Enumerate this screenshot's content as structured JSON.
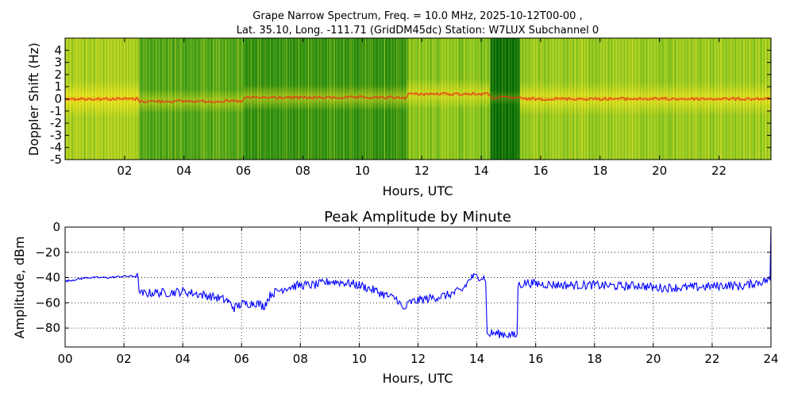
{
  "chart_data": [
    {
      "type": "heatmap",
      "title_line1": "Grape Narrow Spectrum, Freq. = 10.0 MHz, 2025-10-12T00-00 ,",
      "title_line2": "Lat.  35.10, Long. -111.71 (GridDM45dc) Station: W7LUX Subchannel 0",
      "xlabel": "Hours, UTC",
      "ylabel": "Doppler Shift (Hz)",
      "xlim": [
        0,
        23.75
      ],
      "ylim": [
        -5,
        5
      ],
      "xticks": [
        2,
        4,
        6,
        8,
        10,
        12,
        14,
        16,
        18,
        20,
        22
      ],
      "xtick_labels": [
        "02",
        "04",
        "06",
        "08",
        "10",
        "12",
        "14",
        "16",
        "18",
        "20",
        "22"
      ],
      "yticks": [
        4,
        3,
        2,
        1,
        0,
        -1,
        -2,
        -3,
        -4,
        -5
      ],
      "ytick_labels": [
        "4",
        "3",
        "2",
        "1",
        "0",
        "-1",
        "-2",
        "-3",
        "-4",
        "-5"
      ],
      "colormap": [
        "#006b00",
        "#1f8f0a",
        "#5fb818",
        "#c8e21c",
        "#f5e81a",
        "#f2a514",
        "#e8361a"
      ],
      "segments": [
        {
          "start": 0.0,
          "end": 2.5,
          "background": "#a8cf1c",
          "peak_hz": 0.0,
          "level": 0.95
        },
        {
          "start": 2.5,
          "end": 6.0,
          "background": "#4ea414",
          "peak_hz": -0.2,
          "level": 0.55
        },
        {
          "start": 6.0,
          "end": 11.5,
          "background": "#2f8e0c",
          "peak_hz": 0.1,
          "level": 0.6
        },
        {
          "start": 11.5,
          "end": 14.3,
          "background": "#86c41a",
          "peak_hz": 0.4,
          "level": 0.75
        },
        {
          "start": 14.3,
          "end": 15.3,
          "background": "#0a6d00",
          "peak_hz": 0.1,
          "level": 0.25
        },
        {
          "start": 15.3,
          "end": 23.75,
          "background": "#9acb1c",
          "peak_hz": 0.0,
          "level": 0.85
        }
      ]
    },
    {
      "type": "line",
      "title": "Peak Amplitude by Minute",
      "xlabel": "Hours, UTC",
      "ylabel": "Amplitude, dBm",
      "xlim": [
        0,
        24
      ],
      "ylim": [
        -95,
        0
      ],
      "xticks": [
        0,
        2,
        4,
        6,
        8,
        10,
        12,
        14,
        16,
        18,
        20,
        22,
        24
      ],
      "xtick_labels": [
        "00",
        "02",
        "04",
        "06",
        "08",
        "10",
        "12",
        "14",
        "16",
        "18",
        "20",
        "22",
        "24"
      ],
      "yticks": [
        0,
        -20,
        -40,
        -60,
        -80
      ],
      "ytick_labels": [
        "0",
        "−20",
        "−40",
        "−60",
        "−80"
      ],
      "grid": true,
      "line_color": "#0000ff",
      "series": [
        {
          "x": [
            0.0,
            0.25,
            0.5,
            0.75,
            1.0,
            1.5,
            2.0,
            2.45,
            2.55,
            3.0,
            3.5,
            4.0,
            4.5,
            5.0,
            5.5,
            5.75,
            6.0,
            6.5,
            6.75,
            7.0,
            7.5,
            8.0,
            8.5,
            9.0,
            9.5,
            10.0,
            10.5,
            11.0,
            11.3,
            11.5,
            11.7,
            12.0,
            12.5,
            13.0,
            13.5,
            13.8,
            14.1,
            14.3,
            14.35,
            14.5,
            15.0,
            15.3,
            15.4,
            15.7,
            16.0,
            17.0,
            18.0,
            19.0,
            19.5,
            20.0,
            20.5,
            21.0,
            22.0,
            22.5,
            23.0,
            23.5,
            23.9,
            24.0
          ],
          "y": [
            -43,
            -42,
            -41,
            -40,
            -40,
            -40,
            -39,
            -39,
            -53,
            -52,
            -52,
            -51,
            -53,
            -55,
            -58,
            -64,
            -61,
            -60,
            -63,
            -53,
            -48,
            -46,
            -46,
            -43,
            -44,
            -46,
            -50,
            -55,
            -57,
            -66,
            -60,
            -58,
            -56,
            -54,
            -50,
            -40,
            -39,
            -41,
            -86,
            -84,
            -85,
            -86,
            -46,
            -44,
            -45,
            -46,
            -46,
            -47,
            -46,
            -48,
            -48,
            -48,
            -47,
            -46,
            -47,
            -44,
            -42,
            0
          ]
        }
      ]
    }
  ]
}
